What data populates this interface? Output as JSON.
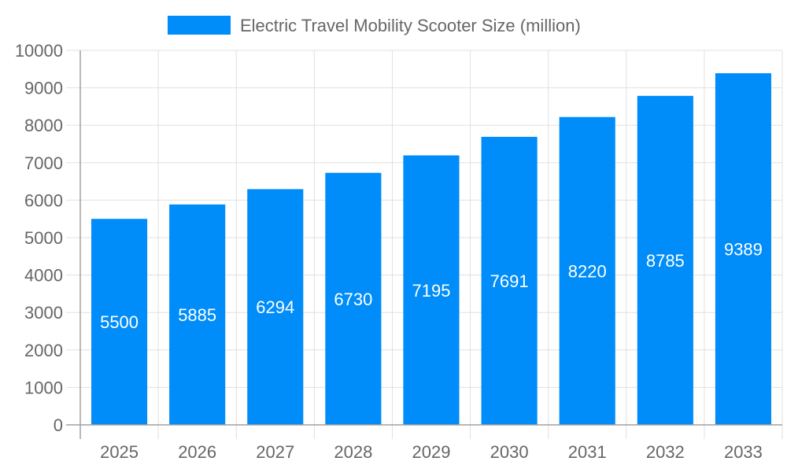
{
  "chart_data": {
    "type": "bar",
    "title": "",
    "xlabel": "",
    "ylabel": "",
    "categories": [
      "2025",
      "2026",
      "2027",
      "2028",
      "2029",
      "2030",
      "2031",
      "2032",
      "2033"
    ],
    "series": [
      {
        "name": "Electric Travel Mobility Scooter Size (million)",
        "values": [
          5500,
          5885,
          6294,
          6730,
          7195,
          7691,
          8220,
          8785,
          9389
        ]
      }
    ],
    "ylim": [
      0,
      10000
    ],
    "yticks": [
      0,
      1000,
      2000,
      3000,
      4000,
      5000,
      6000,
      7000,
      8000,
      9000,
      10000
    ],
    "grid": true,
    "legend_position": "top",
    "data_labels": true,
    "colors": {
      "bar": "#008cf9",
      "text": "#666666",
      "grid": "#e0e0e0",
      "axis": "#a0a0a0",
      "label": "#ffffff"
    }
  }
}
